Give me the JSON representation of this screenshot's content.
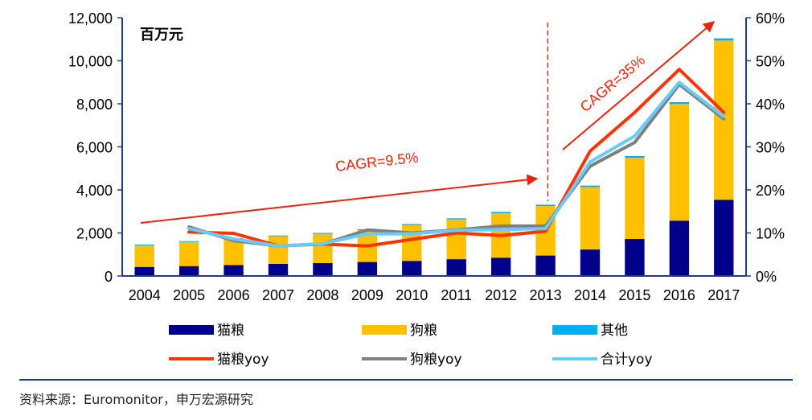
{
  "chart_data": {
    "type": "bar",
    "unit_label": "百万元",
    "categories": [
      "2004",
      "2005",
      "2006",
      "2007",
      "2008",
      "2009",
      "2010",
      "2011",
      "2012",
      "2013",
      "2014",
      "2015",
      "2016",
      "2017"
    ],
    "bar_series": [
      {
        "name": "猫粮",
        "color": "#00008b",
        "values": [
          420,
          460,
          510,
          560,
          600,
          650,
          700,
          780,
          850,
          950,
          1230,
          1720,
          2570,
          3540
        ]
      },
      {
        "name": "狗粮",
        "color": "#ffc000",
        "values": [
          1000,
          1120,
          1200,
          1280,
          1360,
          1480,
          1660,
          1850,
          2070,
          2300,
          2900,
          3770,
          5420,
          7400
        ]
      },
      {
        "name": "其他",
        "color": "#00b0f0",
        "values": [
          40,
          40,
          40,
          40,
          40,
          40,
          50,
          50,
          60,
          60,
          70,
          80,
          90,
          100
        ]
      }
    ],
    "line_series": [
      {
        "name": "猫粮yoy",
        "color": "#ff3300",
        "values": [
          null,
          10.2,
          9.9,
          7.0,
          7.4,
          7.0,
          8.5,
          10.0,
          9.4,
          10.4,
          29.0,
          38.0,
          48.0,
          38.0
        ]
      },
      {
        "name": "狗粮yoy",
        "color": "#7f7f7f",
        "values": [
          null,
          11.4,
          8.2,
          7.0,
          7.4,
          10.7,
          10.0,
          10.7,
          11.6,
          11.6,
          25.5,
          31.0,
          44.5,
          36.5
        ]
      },
      {
        "name": "合计yoy",
        "color": "#66ccff",
        "values": [
          null,
          11.0,
          8.6,
          7.0,
          7.5,
          9.8,
          9.8,
          10.6,
          10.8,
          11.0,
          26.5,
          32.5,
          45.0,
          37.0
        ]
      }
    ],
    "y_left": {
      "min": 0,
      "max": 12000,
      "ticks": [
        "0",
        "2,000",
        "4,000",
        "6,000",
        "8,000",
        "10,000",
        "12,000"
      ]
    },
    "y_right": {
      "min": 0,
      "max": 60,
      "ticks": [
        "0%",
        "10%",
        "20%",
        "30%",
        "40%",
        "50%",
        "60%"
      ]
    },
    "annotations": [
      {
        "text": "CAGR=9.5%",
        "from": "2004",
        "to": "2013",
        "color": "#e8250c"
      },
      {
        "text": "CAGR=35%",
        "from": "2013",
        "to": "2017",
        "color": "#e8250c"
      }
    ],
    "divider_after": "2013",
    "legend_position": "bottom"
  },
  "source_text": "资料来源：Euromonitor，申万宏源研究"
}
